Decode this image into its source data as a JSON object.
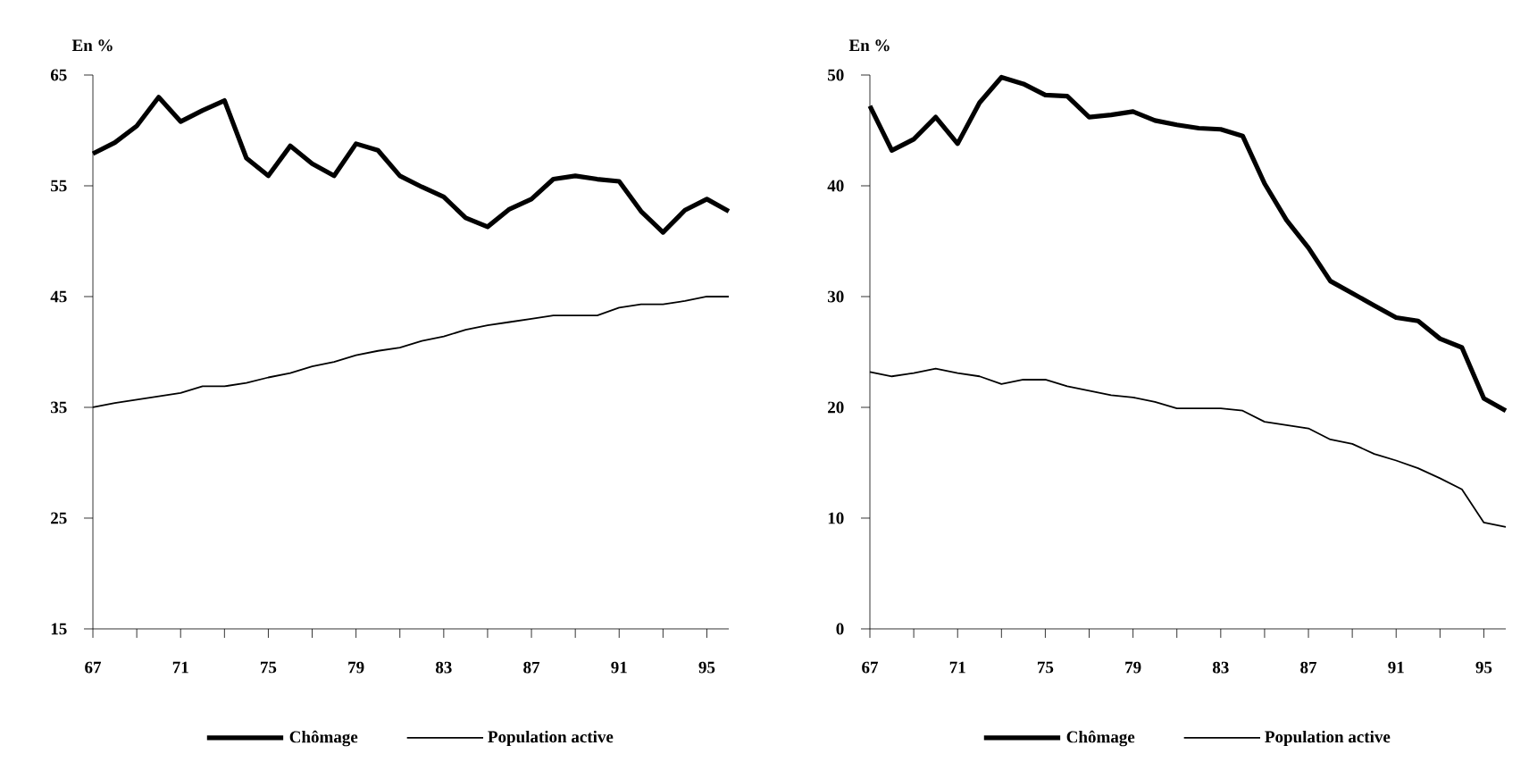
{
  "chart_data": [
    {
      "type": "line",
      "ylabel": "En %",
      "x": [
        67,
        68,
        69,
        70,
        71,
        72,
        73,
        74,
        75,
        76,
        77,
        78,
        79,
        80,
        81,
        82,
        83,
        84,
        85,
        86,
        87,
        88,
        89,
        90,
        91,
        92,
        93,
        94,
        95,
        96
      ],
      "series": [
        {
          "name": "Chômage",
          "color": "#000000",
          "values": [
            57.9,
            58.9,
            60.4,
            63.0,
            60.8,
            61.8,
            62.7,
            57.5,
            55.9,
            58.6,
            57.0,
            55.9,
            58.8,
            58.2,
            55.9,
            54.9,
            54.0,
            52.1,
            51.3,
            52.9,
            53.8,
            55.6,
            55.9,
            55.6,
            55.4,
            52.7,
            50.8,
            52.8,
            53.8,
            52.7
          ]
        },
        {
          "name": "Population active",
          "color": "#000000",
          "values": [
            35.0,
            35.4,
            35.7,
            36.0,
            36.3,
            36.9,
            36.9,
            37.2,
            37.7,
            38.1,
            38.7,
            39.1,
            39.7,
            40.1,
            40.4,
            41.0,
            41.4,
            42.0,
            42.4,
            42.7,
            43.0,
            43.3,
            43.3,
            43.3,
            44.0,
            44.3,
            44.3,
            44.6,
            45.0,
            45.0
          ]
        }
      ],
      "xlim": [
        67,
        96
      ],
      "xticks": [
        67,
        {
          "value": 69,
          "label": null
        },
        71,
        {
          "value": 73,
          "label": null
        },
        75,
        {
          "value": 77,
          "label": null
        },
        79,
        {
          "value": 81,
          "label": null
        },
        83,
        {
          "value": 85,
          "label": null
        },
        87,
        {
          "value": 89,
          "label": null
        },
        91,
        {
          "value": 93,
          "label": null
        },
        95
      ],
      "ylim": [
        15,
        65
      ],
      "yticks": [
        15,
        25,
        35,
        45,
        55,
        65
      ],
      "grid": false,
      "legend": "bottom",
      "marker": "none",
      "line_style": "solid"
    },
    {
      "type": "line",
      "ylabel": "En %",
      "x": [
        67,
        68,
        69,
        70,
        71,
        72,
        73,
        74,
        75,
        76,
        77,
        78,
        79,
        80,
        81,
        82,
        83,
        84,
        85,
        86,
        87,
        88,
        89,
        90,
        91,
        92,
        93,
        94,
        95,
        96
      ],
      "series": [
        {
          "name": "Chômage",
          "color": "#000000",
          "values": [
            47.2,
            43.2,
            44.2,
            46.2,
            43.8,
            47.5,
            49.8,
            49.2,
            48.2,
            48.1,
            46.2,
            46.4,
            46.7,
            45.9,
            45.5,
            45.2,
            45.1,
            44.5,
            40.2,
            36.9,
            34.4,
            31.4,
            30.3,
            29.2,
            28.1,
            27.8,
            26.2,
            25.4,
            20.8,
            19.7
          ]
        },
        {
          "name": "Population active",
          "color": "#000000",
          "values": [
            23.2,
            22.8,
            23.1,
            23.5,
            23.1,
            22.8,
            22.1,
            22.5,
            22.5,
            21.9,
            21.5,
            21.1,
            20.9,
            20.5,
            19.9,
            19.9,
            19.9,
            19.7,
            18.7,
            18.4,
            18.1,
            17.1,
            16.7,
            15.8,
            15.2,
            14.5,
            13.6,
            12.6,
            9.6,
            9.2
          ]
        }
      ],
      "xlim": [
        67,
        96
      ],
      "xticks": [
        67,
        {
          "value": 69,
          "label": null
        },
        71,
        {
          "value": 73,
          "label": null
        },
        75,
        {
          "value": 77,
          "label": null
        },
        79,
        {
          "value": 81,
          "label": null
        },
        83,
        {
          "value": 85,
          "label": null
        },
        87,
        {
          "value": 89,
          "label": null
        },
        91,
        {
          "value": 93,
          "label": null
        },
        95
      ],
      "ylim": [
        0,
        50
      ],
      "yticks": [
        0,
        10,
        20,
        30,
        40,
        50
      ],
      "grid": false,
      "legend": "bottom",
      "marker": "none",
      "line_style": "solid"
    }
  ]
}
